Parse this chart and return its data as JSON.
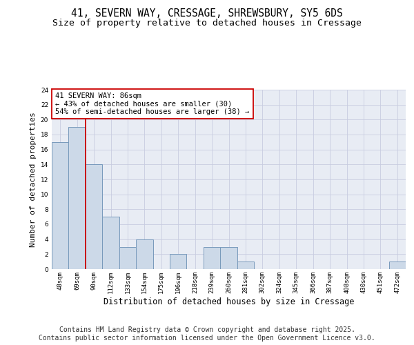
{
  "title_line1": "41, SEVERN WAY, CRESSAGE, SHREWSBURY, SY5 6DS",
  "title_line2": "Size of property relative to detached houses in Cressage",
  "xlabel": "Distribution of detached houses by size in Cressage",
  "ylabel": "Number of detached properties",
  "categories": [
    "48sqm",
    "69sqm",
    "90sqm",
    "112sqm",
    "133sqm",
    "154sqm",
    "175sqm",
    "196sqm",
    "218sqm",
    "239sqm",
    "260sqm",
    "281sqm",
    "302sqm",
    "324sqm",
    "345sqm",
    "366sqm",
    "387sqm",
    "408sqm",
    "430sqm",
    "451sqm",
    "472sqm"
  ],
  "values": [
    17,
    19,
    14,
    7,
    3,
    4,
    0,
    2,
    0,
    3,
    3,
    1,
    0,
    0,
    0,
    0,
    0,
    0,
    0,
    0,
    1
  ],
  "bar_color": "#ccd9e8",
  "bar_edge_color": "#7799bb",
  "grid_color": "#c8cce0",
  "background_color": "#ffffff",
  "plot_bg_color": "#e8ecf4",
  "red_line_x": 1.5,
  "annotation_text": "41 SEVERN WAY: 86sqm\n← 43% of detached houses are smaller (30)\n54% of semi-detached houses are larger (38) →",
  "annotation_box_color": "#ffffff",
  "annotation_box_edge": "#cc0000",
  "red_line_color": "#cc0000",
  "ylim": [
    0,
    24
  ],
  "yticks": [
    0,
    2,
    4,
    6,
    8,
    10,
    12,
    14,
    16,
    18,
    20,
    22,
    24
  ],
  "footer_line1": "Contains HM Land Registry data © Crown copyright and database right 2025.",
  "footer_line2": "Contains public sector information licensed under the Open Government Licence v3.0.",
  "title_fontsize": 10.5,
  "subtitle_fontsize": 9.5,
  "footer_fontsize": 7,
  "annotation_fontsize": 7.5,
  "ylabel_fontsize": 8,
  "xlabel_fontsize": 8.5,
  "tick_fontsize": 6.5
}
